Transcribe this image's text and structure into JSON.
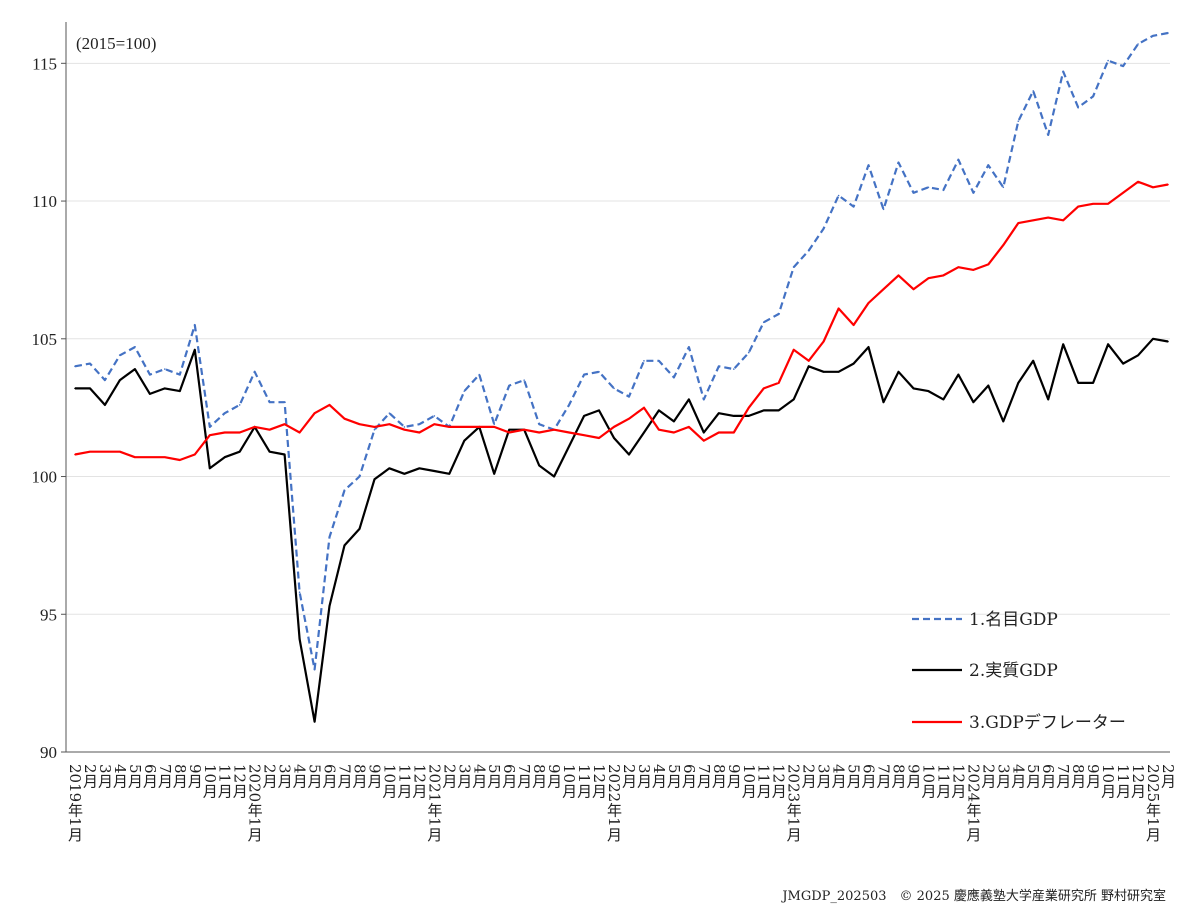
{
  "chart_data": {
    "type": "line",
    "unit_note": "(2015=100)",
    "ylim": [
      90,
      116.5
    ],
    "y_ticks": [
      90,
      95,
      100,
      105,
      110,
      115
    ],
    "y_tick_labels": [
      "90",
      "95",
      "100",
      "105",
      "110",
      "115"
    ],
    "grid": true,
    "legend_position": "bottom-right",
    "x_labels": [
      "2019年1月",
      "2月",
      "3月",
      "4月",
      "5月",
      "6月",
      "7月",
      "8月",
      "9月",
      "10月",
      "11月",
      "12月",
      "2020年1月",
      "2月",
      "3月",
      "4月",
      "5月",
      "6月",
      "7月",
      "8月",
      "9月",
      "10月",
      "11月",
      "12月",
      "2021年1月",
      "2月",
      "3月",
      "4月",
      "5月",
      "6月",
      "7月",
      "8月",
      "9月",
      "10月",
      "11月",
      "12月",
      "2022年1月",
      "2月",
      "3月",
      "4月",
      "5月",
      "6月",
      "7月",
      "8月",
      "9月",
      "10月",
      "11月",
      "12月",
      "2023年1月",
      "2月",
      "3月",
      "4月",
      "5月",
      "6月",
      "7月",
      "8月",
      "9月",
      "10月",
      "11月",
      "12月",
      "2024年1月",
      "2月",
      "3月",
      "4月",
      "5月",
      "6月",
      "7月",
      "8月",
      "9月",
      "10月",
      "11月",
      "12月",
      "2025年1月",
      "2月"
    ],
    "series": [
      {
        "name": "1.名目GDP",
        "color": "#4472C4",
        "style": "dashed",
        "values": [
          104.0,
          104.1,
          103.5,
          104.4,
          104.7,
          103.7,
          103.9,
          103.7,
          105.5,
          101.8,
          102.3,
          102.6,
          103.8,
          102.7,
          102.7,
          95.8,
          93.0,
          97.8,
          99.5,
          100.0,
          101.7,
          102.3,
          101.8,
          101.9,
          102.2,
          101.8,
          103.1,
          103.7,
          101.9,
          103.3,
          103.5,
          101.9,
          101.7,
          102.6,
          103.7,
          103.8,
          103.2,
          102.9,
          104.2,
          104.2,
          103.6,
          104.7,
          102.8,
          104.0,
          103.9,
          104.5,
          105.6,
          105.9,
          107.6,
          108.2,
          109.0,
          110.2,
          109.8,
          111.3,
          109.7,
          111.4,
          110.3,
          110.5,
          110.4,
          111.5,
          110.3,
          111.3,
          110.5,
          112.9,
          114.0,
          112.4,
          114.7,
          113.4,
          113.8,
          115.1,
          114.9,
          115.7,
          116.0,
          116.1
        ]
      },
      {
        "name": "2.実質GDP",
        "color": "#000000",
        "style": "solid",
        "values": [
          103.2,
          103.2,
          102.6,
          103.5,
          103.9,
          103.0,
          103.2,
          103.1,
          104.6,
          100.3,
          100.7,
          100.9,
          101.8,
          100.9,
          100.8,
          94.1,
          91.1,
          95.3,
          97.5,
          98.1,
          99.9,
          100.3,
          100.1,
          100.3,
          100.2,
          100.1,
          101.3,
          101.8,
          100.1,
          101.7,
          101.7,
          100.4,
          100.0,
          101.1,
          102.2,
          102.4,
          101.4,
          100.8,
          101.6,
          102.4,
          102.0,
          102.8,
          101.6,
          102.3,
          102.2,
          102.2,
          102.4,
          102.4,
          102.8,
          104.0,
          103.8,
          103.8,
          104.1,
          104.7,
          102.7,
          103.8,
          103.2,
          103.1,
          102.8,
          103.7,
          102.7,
          103.3,
          102.0,
          103.4,
          104.2,
          102.8,
          104.8,
          103.4,
          103.4,
          104.8,
          104.1,
          104.4,
          105.0,
          104.9
        ]
      },
      {
        "name": "3.GDPデフレーター",
        "color": "#FF0000",
        "style": "solid",
        "values": [
          100.8,
          100.9,
          100.9,
          100.9,
          100.7,
          100.7,
          100.7,
          100.6,
          100.8,
          101.5,
          101.6,
          101.6,
          101.8,
          101.7,
          101.9,
          101.6,
          102.3,
          102.6,
          102.1,
          101.9,
          101.8,
          101.9,
          101.7,
          101.6,
          101.9,
          101.8,
          101.8,
          101.8,
          101.8,
          101.6,
          101.7,
          101.6,
          101.7,
          101.6,
          101.5,
          101.4,
          101.8,
          102.1,
          102.5,
          101.7,
          101.6,
          101.8,
          101.3,
          101.6,
          101.6,
          102.5,
          103.2,
          103.4,
          104.6,
          104.2,
          104.9,
          106.1,
          105.5,
          106.3,
          106.8,
          107.3,
          106.8,
          107.2,
          107.3,
          107.6,
          107.5,
          107.7,
          108.4,
          109.2,
          109.3,
          109.4,
          109.3,
          109.8,
          109.9,
          109.9,
          110.3,
          110.7,
          110.5,
          110.6
        ]
      }
    ]
  },
  "footer": "JMGDP_202503　© 2025 慶應義塾大学産業研究所 野村研究室"
}
